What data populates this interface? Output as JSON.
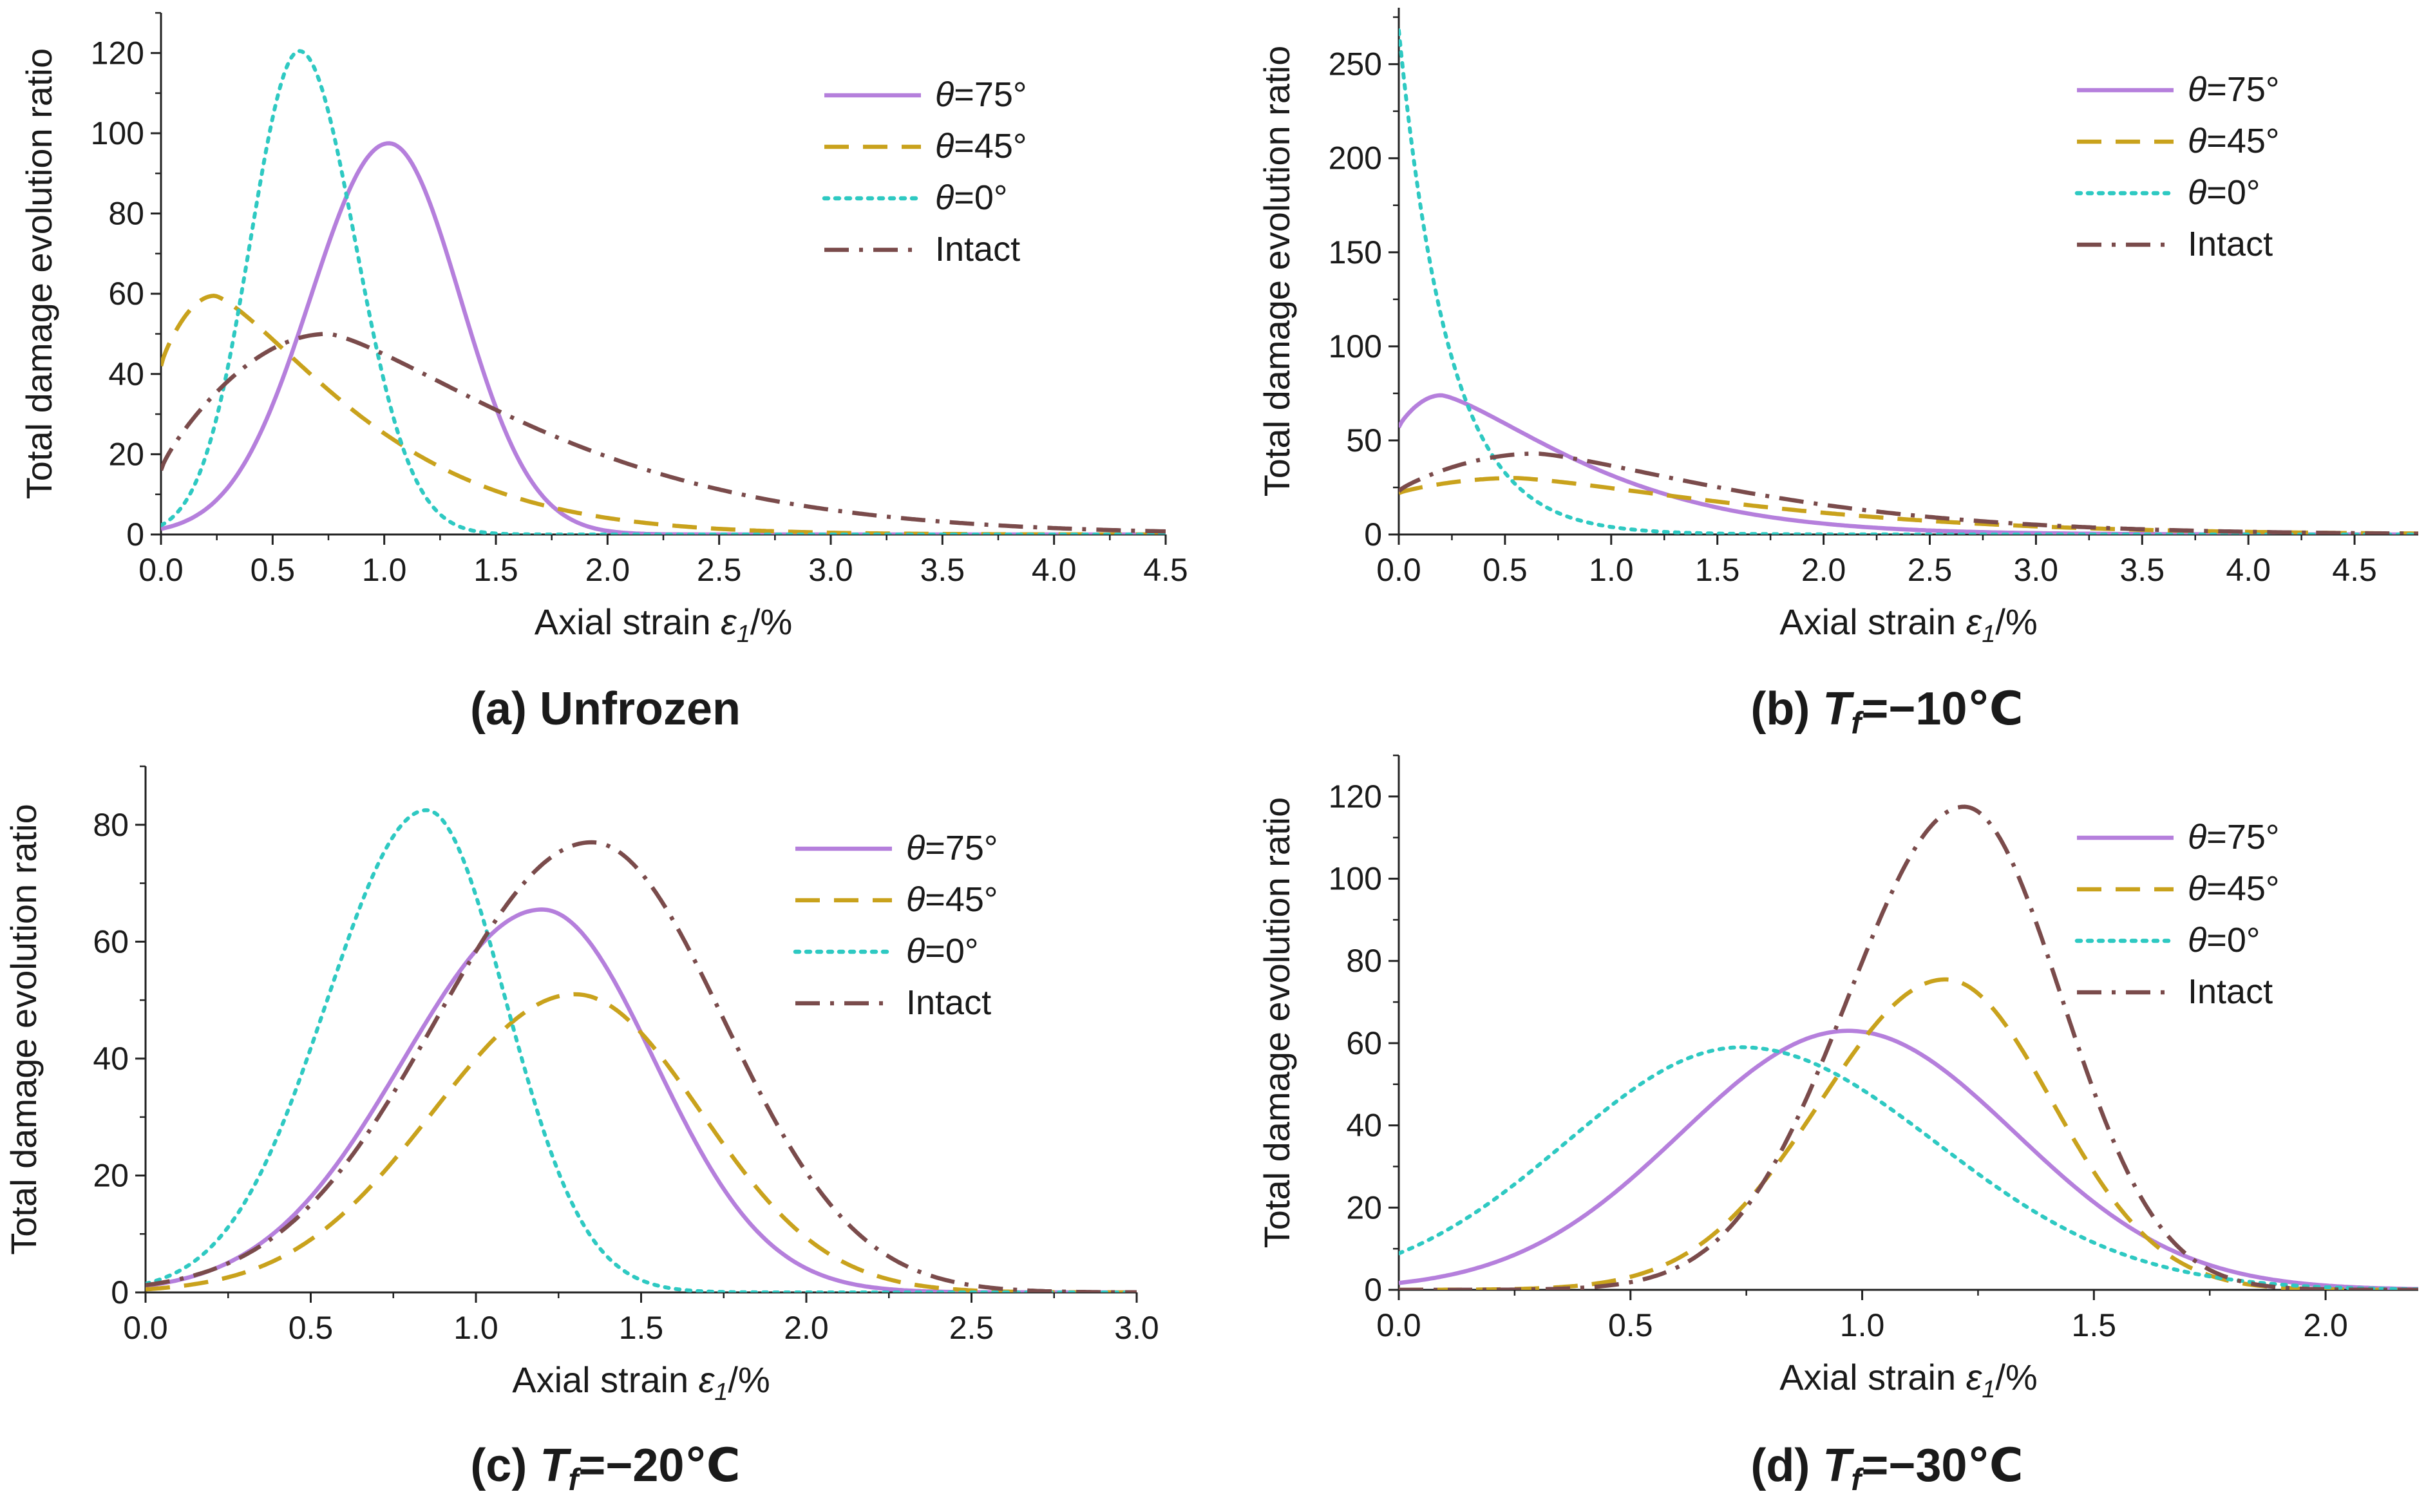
{
  "colors": {
    "theta75": "#b57fdc",
    "theta45": "#c9a21c",
    "theta0": "#2ec9c2",
    "intact": "#7a4b4b",
    "axis": "#222222"
  },
  "chart_data": [
    {
      "id": "a",
      "type": "line",
      "caption": {
        "label": "(a) Unfrozen",
        "tf": "",
        "value": ""
      },
      "xlabel": {
        "prefix": "Axial strain ",
        "symbol": "ε",
        "sub": "1",
        "suffix": "/%"
      },
      "ylabel": "Total damage evolution ratio",
      "xlim": [
        0,
        4.5
      ],
      "ylim": [
        0,
        130
      ],
      "xticks": [
        0,
        0.5,
        1,
        1.5,
        2,
        2.5,
        3,
        3.5,
        4,
        4.5
      ],
      "xtick_labels": [
        "0.0",
        "0.5",
        "1.0",
        "1.5",
        "2.0",
        "2.5",
        "3.0",
        "3.5",
        "4.0",
        "4.5"
      ],
      "yticks": [
        0,
        20,
        40,
        60,
        80,
        100,
        120
      ],
      "ytick_labels": [
        "0",
        "20",
        "40",
        "60",
        "80",
        "100",
        "120"
      ],
      "legend_position": "top-right",
      "series": [
        {
          "name": "θ=75°",
          "key": "theta75",
          "style": "solid",
          "kind": "gauss",
          "peak_x": 1.02,
          "peak_y": 97.5,
          "sigma_left": 0.35,
          "sigma_right": 0.32
        },
        {
          "name": "θ=45°",
          "key": "theta45",
          "style": "dash",
          "kind": "lognorm",
          "peak_x": 0.24,
          "peak_y": 59.5,
          "x_start": 0,
          "y_start": 42,
          "tail": 0.85,
          "shape": 1.0
        },
        {
          "name": "θ=0°",
          "key": "theta0",
          "style": "dot",
          "kind": "gauss",
          "peak_x": 0.62,
          "peak_y": 120.5,
          "sigma_left": 0.22,
          "sigma_right": 0.25
        },
        {
          "name": "Intact",
          "key": "intact",
          "style": "dashdot",
          "kind": "lognorm",
          "peak_x": 0.75,
          "peak_y": 50,
          "x_start": 0,
          "y_start": 16,
          "tail": 1.3,
          "shape": 1.0
        }
      ]
    },
    {
      "id": "b",
      "type": "line",
      "caption": {
        "label": "(b) ",
        "tf": "T",
        "tf_sub": "f",
        "value": "=−10℃"
      },
      "xlabel": {
        "prefix": "Axial strain ",
        "symbol": "ε",
        "sub": "1",
        "suffix": "/%"
      },
      "ylabel": "Total damage evolution ratio",
      "xlim": [
        0,
        4.8
      ],
      "ylim": [
        0,
        280
      ],
      "xticks": [
        0,
        0.5,
        1,
        1.5,
        2,
        2.5,
        3,
        3.5,
        4,
        4.5
      ],
      "xtick_labels": [
        "0.0",
        "0.5",
        "1.0",
        "1.5",
        "2.0",
        "2.5",
        "3.0",
        "3.5",
        "4.0",
        "4.5"
      ],
      "yticks": [
        0,
        50,
        100,
        150,
        200,
        250
      ],
      "ytick_labels": [
        "0",
        "50",
        "100",
        "150",
        "200",
        "250"
      ],
      "legend_position": "top-right",
      "series": [
        {
          "name": "θ=75°",
          "key": "theta75",
          "style": "solid",
          "kind": "lognorm",
          "peak_x": 0.2,
          "peak_y": 74,
          "x_start": 0,
          "y_start": 57,
          "tail": 0.9,
          "shape": 1.0
        },
        {
          "name": "θ=45°",
          "key": "theta45",
          "style": "dash",
          "kind": "lognorm",
          "peak_x": 0.55,
          "peak_y": 30,
          "x_start": 0,
          "y_start": 22,
          "tail": 1.5,
          "shape": 1.0
        },
        {
          "name": "θ=0°",
          "key": "theta0",
          "style": "dot",
          "kind": "decay",
          "x_start": 0,
          "y_start": 268,
          "rate": 4.2
        },
        {
          "name": "Intact",
          "key": "intact",
          "style": "dashdot",
          "kind": "lognorm",
          "peak_x": 0.65,
          "peak_y": 43,
          "x_start": 0,
          "y_start": 23,
          "tail": 1.35,
          "shape": 1.0
        }
      ]
    },
    {
      "id": "c",
      "type": "line",
      "caption": {
        "label": "(c) ",
        "tf": "T",
        "tf_sub": "f",
        "value": "=−20℃"
      },
      "xlabel": {
        "prefix": "Axial strain ",
        "symbol": "ε",
        "sub": "1",
        "suffix": "/%"
      },
      "ylabel": "Total damage evolution ratio",
      "xlim": [
        0,
        3.0
      ],
      "ylim": [
        0,
        90
      ],
      "xticks": [
        0,
        0.5,
        1,
        1.5,
        2,
        2.5,
        3
      ],
      "xtick_labels": [
        "0.0",
        "0.5",
        "1.0",
        "1.5",
        "2.0",
        "2.5",
        "3.0"
      ],
      "yticks": [
        0,
        20,
        40,
        60,
        80
      ],
      "ytick_labels": [
        "0",
        "20",
        "40",
        "60",
        "80"
      ],
      "legend_position": "top-right",
      "series": [
        {
          "name": "θ=75°",
          "key": "theta75",
          "style": "solid",
          "kind": "gauss",
          "peak_x": 1.2,
          "peak_y": 65.5,
          "sigma_left": 0.42,
          "sigma_right": 0.34
        },
        {
          "name": "θ=45°",
          "key": "theta45",
          "style": "dash",
          "kind": "gauss",
          "peak_x": 1.3,
          "peak_y": 51,
          "sigma_left": 0.43,
          "sigma_right": 0.38
        },
        {
          "name": "θ=0°",
          "key": "theta0",
          "style": "dot",
          "kind": "gauss",
          "peak_x": 0.85,
          "peak_y": 82.5,
          "sigma_left": 0.3,
          "sigma_right": 0.24
        },
        {
          "name": "Intact",
          "key": "intact",
          "style": "dashdot",
          "kind": "gauss",
          "peak_x": 1.35,
          "peak_y": 77,
          "sigma_left": 0.47,
          "sigma_right": 0.4
        }
      ]
    },
    {
      "id": "d",
      "type": "line",
      "caption": {
        "label": "(d) ",
        "tf": "T",
        "tf_sub": "f",
        "value": "=−30℃"
      },
      "xlabel": {
        "prefix": "Axial strain ",
        "symbol": "ε",
        "sub": "1",
        "suffix": "/%"
      },
      "ylabel": "Total damage evolution ratio",
      "xlim": [
        0,
        2.2
      ],
      "ylim": [
        0,
        130
      ],
      "xticks": [
        0,
        0.5,
        1,
        1.5,
        2
      ],
      "xtick_labels": [
        "0.0",
        "0.5",
        "1.0",
        "1.5",
        "2.0"
      ],
      "yticks": [
        0,
        20,
        40,
        60,
        80,
        100,
        120
      ],
      "ytick_labels": [
        "0",
        "20",
        "40",
        "60",
        "80",
        "100",
        "120"
      ],
      "legend_position": "top-right",
      "series": [
        {
          "name": "θ=75°",
          "key": "theta75",
          "style": "solid",
          "kind": "gauss",
          "peak_x": 0.97,
          "peak_y": 63,
          "sigma_left": 0.36,
          "sigma_right": 0.36
        },
        {
          "name": "θ=45°",
          "key": "theta45",
          "style": "dash",
          "kind": "gauss",
          "peak_x": 1.18,
          "peak_y": 75.5,
          "sigma_left": 0.27,
          "sigma_right": 0.23
        },
        {
          "name": "θ=0°",
          "key": "theta0",
          "style": "dot",
          "kind": "gauss",
          "peak_x": 0.74,
          "peak_y": 59,
          "sigma_left": 0.38,
          "sigma_right": 0.42
        },
        {
          "name": "Intact",
          "key": "intact",
          "style": "dashdot",
          "kind": "gauss",
          "peak_x": 1.22,
          "peak_y": 117.5,
          "sigma_left": 0.25,
          "sigma_right": 0.21
        }
      ]
    }
  ]
}
